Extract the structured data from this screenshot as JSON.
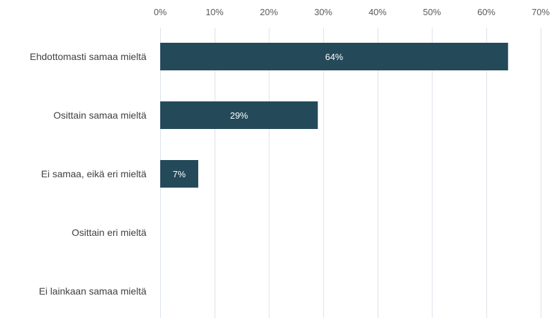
{
  "chart_data": {
    "type": "bar",
    "orientation": "horizontal",
    "categories": [
      "Ehdottomasti samaa mieltä",
      "Osittain samaa mieltä",
      "Ei samaa, eikä eri mieltä",
      "Osittain eri mieltä",
      "Ei lainkaan samaa mieltä"
    ],
    "values": [
      64,
      29,
      7,
      0,
      0
    ],
    "data_labels": [
      "64%",
      "29%",
      "7%",
      "",
      ""
    ],
    "xlim": [
      0,
      70
    ],
    "x_ticks": [
      0,
      10,
      20,
      30,
      40,
      50,
      60,
      70
    ],
    "x_tick_labels": [
      "0%",
      "10%",
      "20%",
      "30%",
      "40%",
      "50%",
      "60%",
      "70%"
    ],
    "x_axis_position": "top",
    "grid": true,
    "legend": "none",
    "title": "",
    "xlabel": "",
    "ylabel": "",
    "bar_color": "#244a5a",
    "grid_color": "#d9e2ea"
  }
}
